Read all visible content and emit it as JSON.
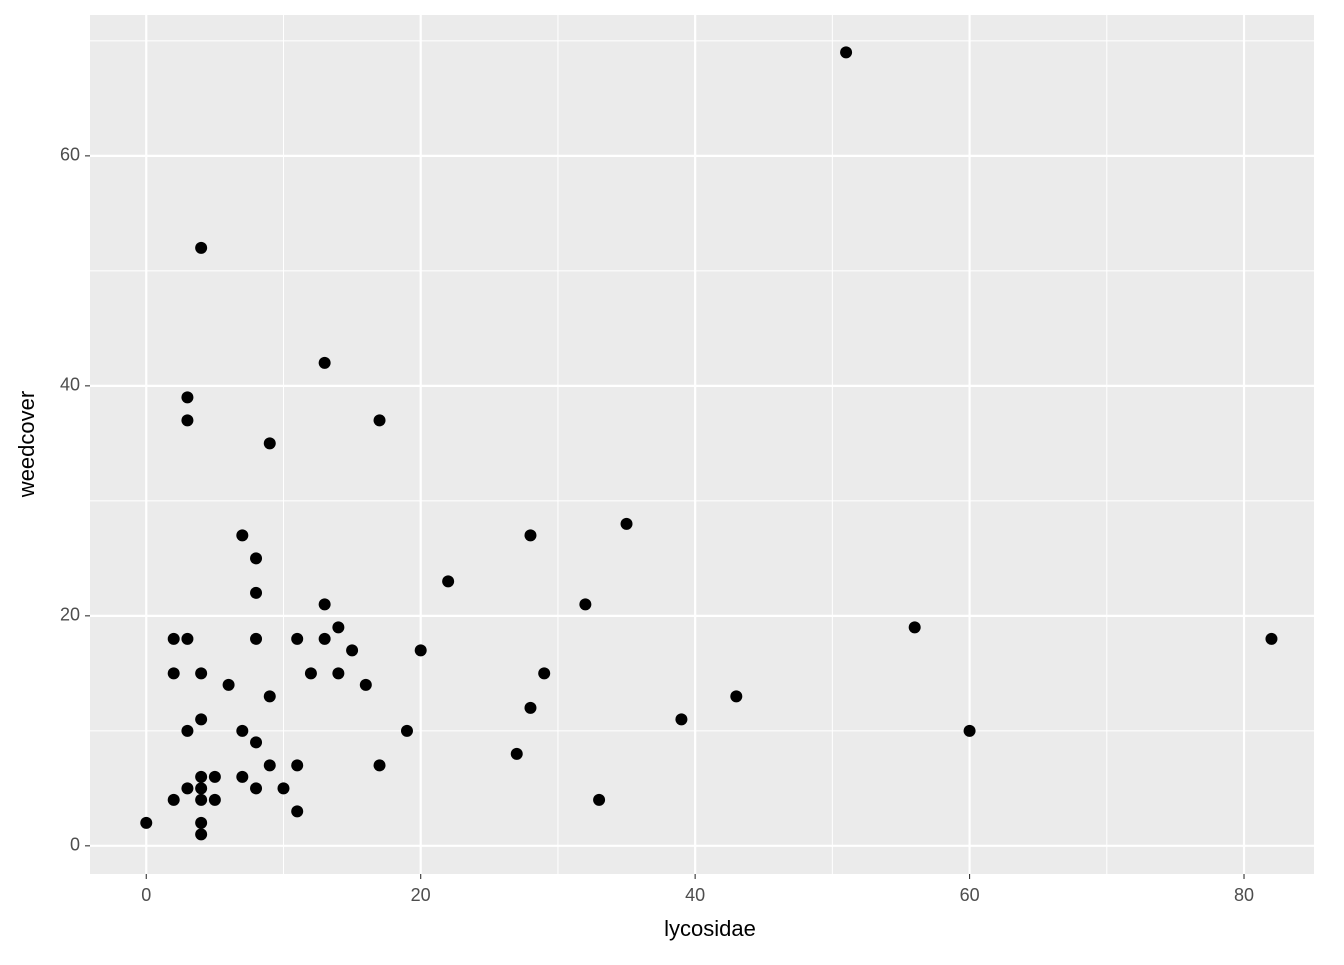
{
  "chart_data": {
    "type": "scatter",
    "x_label": "lycosidae",
    "y_label": "weedcover",
    "x": [
      0,
      2,
      2,
      2,
      3,
      3,
      3,
      3,
      3,
      4,
      4,
      4,
      4,
      4,
      4,
      4,
      4,
      5,
      5,
      6,
      7,
      7,
      7,
      8,
      8,
      8,
      8,
      8,
      9,
      9,
      9,
      10,
      11,
      11,
      11,
      12,
      13,
      13,
      13,
      14,
      14,
      15,
      16,
      17,
      17,
      19,
      20,
      22,
      27,
      28,
      28,
      29,
      32,
      33,
      35,
      39,
      43,
      51,
      56,
      60,
      82
    ],
    "series": [
      {
        "color": "#000000",
        "values": [
          2,
          4,
          15,
          18,
          18,
          10,
          5,
          37,
          39,
          52,
          15,
          11,
          6,
          5,
          4,
          2,
          1,
          6,
          4,
          14,
          27,
          10,
          6,
          25,
          22,
          18,
          9,
          5,
          35,
          13,
          7,
          5,
          18,
          7,
          3,
          15,
          42,
          21,
          18,
          19,
          15,
          17,
          14,
          37,
          7,
          10,
          17,
          23,
          8,
          27,
          12,
          15,
          21,
          4,
          28,
          11,
          13,
          69,
          19,
          10,
          18
        ]
      }
    ],
    "xlim": [
      -4.1,
      85.1
    ],
    "ylim": [
      -2.45,
      72.25
    ],
    "xticks": [
      0,
      20,
      40,
      60,
      80
    ],
    "yticks": [
      0,
      20,
      40,
      60
    ],
    "grid": true
  }
}
